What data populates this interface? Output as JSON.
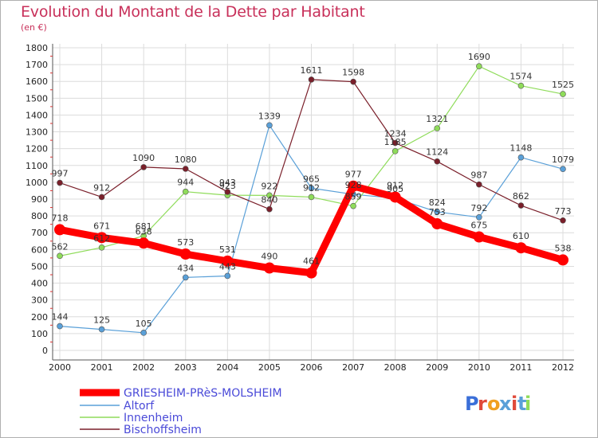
{
  "chart_data": {
    "type": "line",
    "title": "Evolution du Montant de la Dette par Habitant",
    "subtitle": "(en €)",
    "categories": [
      "2000",
      "2001",
      "2002",
      "2003",
      "2004",
      "2005",
      "2006",
      "2007",
      "2008",
      "2009",
      "2010",
      "2011",
      "2012"
    ],
    "ylim": [
      0,
      1800
    ],
    "yticks": [
      0,
      100,
      200,
      300,
      400,
      500,
      600,
      700,
      800,
      900,
      1000,
      1100,
      1200,
      1300,
      1400,
      1500,
      1600,
      1700,
      1800
    ],
    "grid": true,
    "legend_position": "bottom-left",
    "series": [
      {
        "name": "GRIESHEIM-PRèS-MOLSHEIM",
        "color": "#ff0000",
        "values": [
          718,
          671,
          638,
          573,
          531,
          490,
          461,
          977,
          912,
          753,
          675,
          610,
          538
        ]
      },
      {
        "name": "Altorf",
        "color": "#5aa0d8",
        "values": [
          144,
          125,
          105,
          434,
          443,
          1339,
          965,
          928,
          905,
          824,
          792,
          1148,
          1079
        ]
      },
      {
        "name": "Innenheim",
        "color": "#8fdc5a",
        "values": [
          562,
          612,
          681,
          944,
          923,
          922,
          912,
          859,
          1185,
          1321,
          1690,
          1574,
          1525
        ]
      },
      {
        "name": "Bischoffsheim",
        "color": "#7a1f2a",
        "values": [
          997,
          912,
          1090,
          1080,
          943,
          840,
          1611,
          1598,
          1234,
          1124,
          987,
          862,
          773
        ]
      }
    ]
  },
  "logo": {
    "text": "Proxiti",
    "letter_colors": [
      "#3b6fd8",
      "#e04a3a",
      "#f0a020",
      "#5aa0d8",
      "#e04a3a",
      "#5aa0d8",
      "#8fdc5a"
    ]
  }
}
